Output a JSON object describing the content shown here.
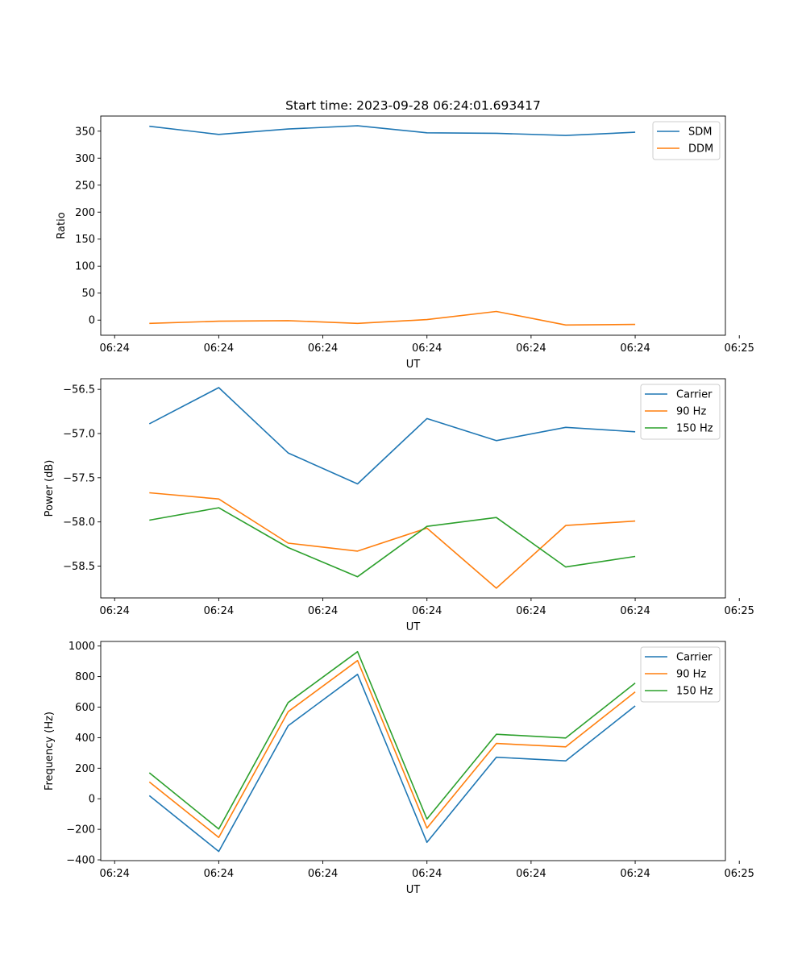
{
  "figure_title": "Start time: 2023-09-28 06:24:01.693417",
  "chart_data": [
    {
      "type": "line",
      "title": "Start time: 2023-09-28 06:24:01.693417",
      "xlabel": "UT",
      "ylabel": "Ratio",
      "xlim": [
        -0.4,
        8.6
      ],
      "ylim": [
        -28,
        378
      ],
      "x": [
        0.3,
        1.3,
        2.3,
        3.3,
        4.3,
        5.3,
        6.3,
        7.3
      ],
      "x_ticks": [
        -0.2,
        1.3,
        2.8,
        4.3,
        5.8,
        7.3,
        8.8
      ],
      "x_tick_labels": [
        "06:24",
        "06:24",
        "06:24",
        "06:24",
        "06:24",
        "06:24",
        "06:24"
      ],
      "x_tick_labels_last": "06:25",
      "y_ticks": [
        0,
        50,
        100,
        150,
        200,
        250,
        300,
        350
      ],
      "y_tick_labels": [
        "0",
        "50",
        "100",
        "150",
        "200",
        "250",
        "300",
        "350"
      ],
      "legend_position": "top-right",
      "series": [
        {
          "name": "SDM",
          "color": "#1f77b4",
          "values": [
            359,
            344,
            354,
            360,
            347,
            346,
            342,
            348
          ]
        },
        {
          "name": "DDM",
          "color": "#ff7f0e",
          "values": [
            -6,
            -2,
            -1,
            -6,
            1,
            16,
            -9,
            -8
          ]
        }
      ]
    },
    {
      "type": "line",
      "xlabel": "UT",
      "ylabel": "Power (dB)",
      "ylim": [
        -58.86,
        -56.38
      ],
      "x": [
        0.3,
        1.3,
        2.3,
        3.3,
        4.3,
        5.3,
        6.3,
        7.3
      ],
      "y_ticks": [
        -58.5,
        -58.0,
        -57.5,
        -57.0,
        -56.5
      ],
      "y_tick_labels": [
        "−58.5",
        "−58.0",
        "−57.5",
        "−57.0",
        "−56.5"
      ],
      "legend_position": "top-right",
      "series": [
        {
          "name": "Carrier",
          "color": "#1f77b4",
          "values": [
            -56.89,
            -56.48,
            -57.22,
            -57.57,
            -56.83,
            -57.08,
            -56.93,
            -56.98
          ]
        },
        {
          "name": "90 Hz",
          "color": "#ff7f0e",
          "values": [
            -57.67,
            -57.74,
            -58.24,
            -58.33,
            -58.07,
            -58.75,
            -58.04,
            -57.99
          ]
        },
        {
          "name": "150 Hz",
          "color": "#2ca02c",
          "values": [
            -57.98,
            -57.84,
            -58.29,
            -58.62,
            -58.05,
            -57.95,
            -58.51,
            -58.39
          ]
        }
      ]
    },
    {
      "type": "line",
      "xlabel": "UT",
      "ylabel": "Frequency (Hz)",
      "ylim": [
        -405,
        1030
      ],
      "x": [
        0.3,
        1.3,
        2.3,
        3.3,
        4.3,
        5.3,
        6.3,
        7.3
      ],
      "y_ticks": [
        -400,
        -200,
        0,
        200,
        400,
        600,
        800,
        1000
      ],
      "y_tick_labels": [
        "−400",
        "−200",
        "0",
        "200",
        "400",
        "600",
        "800",
        "1000"
      ],
      "legend_position": "top-right",
      "series": [
        {
          "name": "Carrier",
          "color": "#1f77b4",
          "values": [
            20,
            -345,
            478,
            815,
            -285,
            272,
            248,
            608
          ]
        },
        {
          "name": "90 Hz",
          "color": "#ff7f0e",
          "values": [
            110,
            -253,
            570,
            905,
            -192,
            362,
            340,
            700
          ]
        },
        {
          "name": "150 Hz",
          "color": "#2ca02c",
          "values": [
            170,
            -198,
            630,
            963,
            -133,
            422,
            398,
            758
          ]
        }
      ]
    }
  ]
}
